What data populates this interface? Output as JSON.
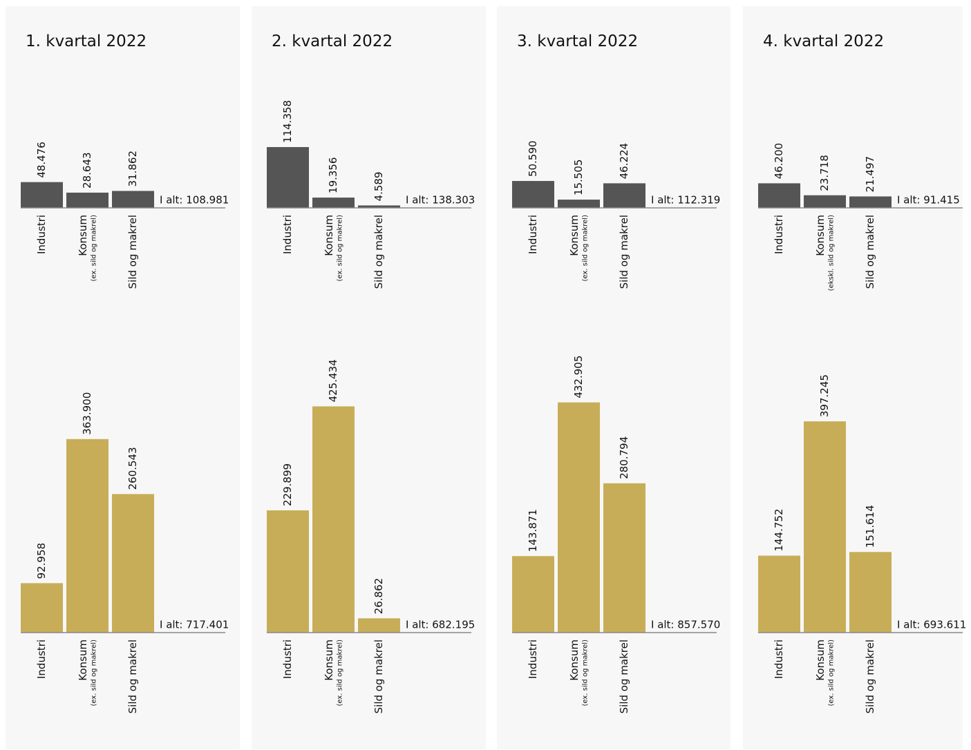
{
  "chart_data": [
    {
      "type": "bar",
      "title": "1. kvartal 2022",
      "categories": [
        "Industri",
        "Konsum",
        "Sild og makrel"
      ],
      "category_note": "(ex. sild og makrel)",
      "values": [
        48476,
        28643,
        31862
      ],
      "value_labels": [
        "48.476",
        "28.643",
        "31.862"
      ],
      "total_label": "I alt: 108.981",
      "color": "#555555"
    },
    {
      "type": "bar",
      "categories": [
        "Industri",
        "Konsum",
        "Sild og makrel"
      ],
      "category_note": "(ex. sild og makrel)",
      "values": [
        92958,
        363900,
        260543
      ],
      "value_labels": [
        "92.958",
        "363.900",
        "260.543"
      ],
      "total_label": "I alt: 717.401",
      "color": "#c8ad58"
    },
    {
      "type": "bar",
      "title": "2. kvartal 2022",
      "categories": [
        "Industri",
        "Konsum",
        "Sild og makrel"
      ],
      "category_note": "(ex. sild og makrel)",
      "values": [
        114358,
        19356,
        4589
      ],
      "value_labels": [
        "114.358",
        "19.356",
        "4.589"
      ],
      "total_label": "I alt: 138.303",
      "color": "#555555"
    },
    {
      "type": "bar",
      "categories": [
        "Industri",
        "Konsum",
        "Sild og makrel"
      ],
      "category_note": "(ex. sild og makrel)",
      "values": [
        229899,
        425434,
        26862
      ],
      "value_labels": [
        "229.899",
        "425.434",
        "26.862"
      ],
      "total_label": "I alt: 682.195",
      "color": "#c8ad58"
    },
    {
      "type": "bar",
      "title": "3. kvartal 2022",
      "categories": [
        "Industri",
        "Konsum",
        "Sild og makrel"
      ],
      "category_note": "(ex. sild og makrel)",
      "values": [
        50590,
        15505,
        46224
      ],
      "value_labels": [
        "50.590",
        "15.505",
        "46.224"
      ],
      "total_label": "I alt: 112.319",
      "color": "#555555"
    },
    {
      "type": "bar",
      "categories": [
        "Industri",
        "Konsum",
        "Sild og makrel"
      ],
      "category_note": "(ex. sild og makrel)",
      "values": [
        143871,
        432905,
        280794
      ],
      "value_labels": [
        "143.871",
        "432.905",
        "280.794"
      ],
      "total_label": "I alt: 857.570",
      "color": "#c8ad58"
    },
    {
      "type": "bar",
      "title": "4. kvartal 2022",
      "categories": [
        "Industri",
        "Konsum",
        "Sild og makrel"
      ],
      "category_note": "(ekskl. sild og makrel)",
      "values": [
        46200,
        23718,
        21497
      ],
      "value_labels": [
        "46.200",
        "23.718",
        "21.497"
      ],
      "total_label": "I alt: 91.415",
      "color": "#555555"
    },
    {
      "type": "bar",
      "categories": [
        "Industri",
        "Konsum",
        "Sild og makrel"
      ],
      "category_note": "(ex. sild og makrel)",
      "values": [
        144752,
        397245,
        151614
      ],
      "value_labels": [
        "144.752",
        "397.245",
        "151.614"
      ],
      "total_label": "I alt: 693.611",
      "color": "#c8ad58"
    }
  ]
}
